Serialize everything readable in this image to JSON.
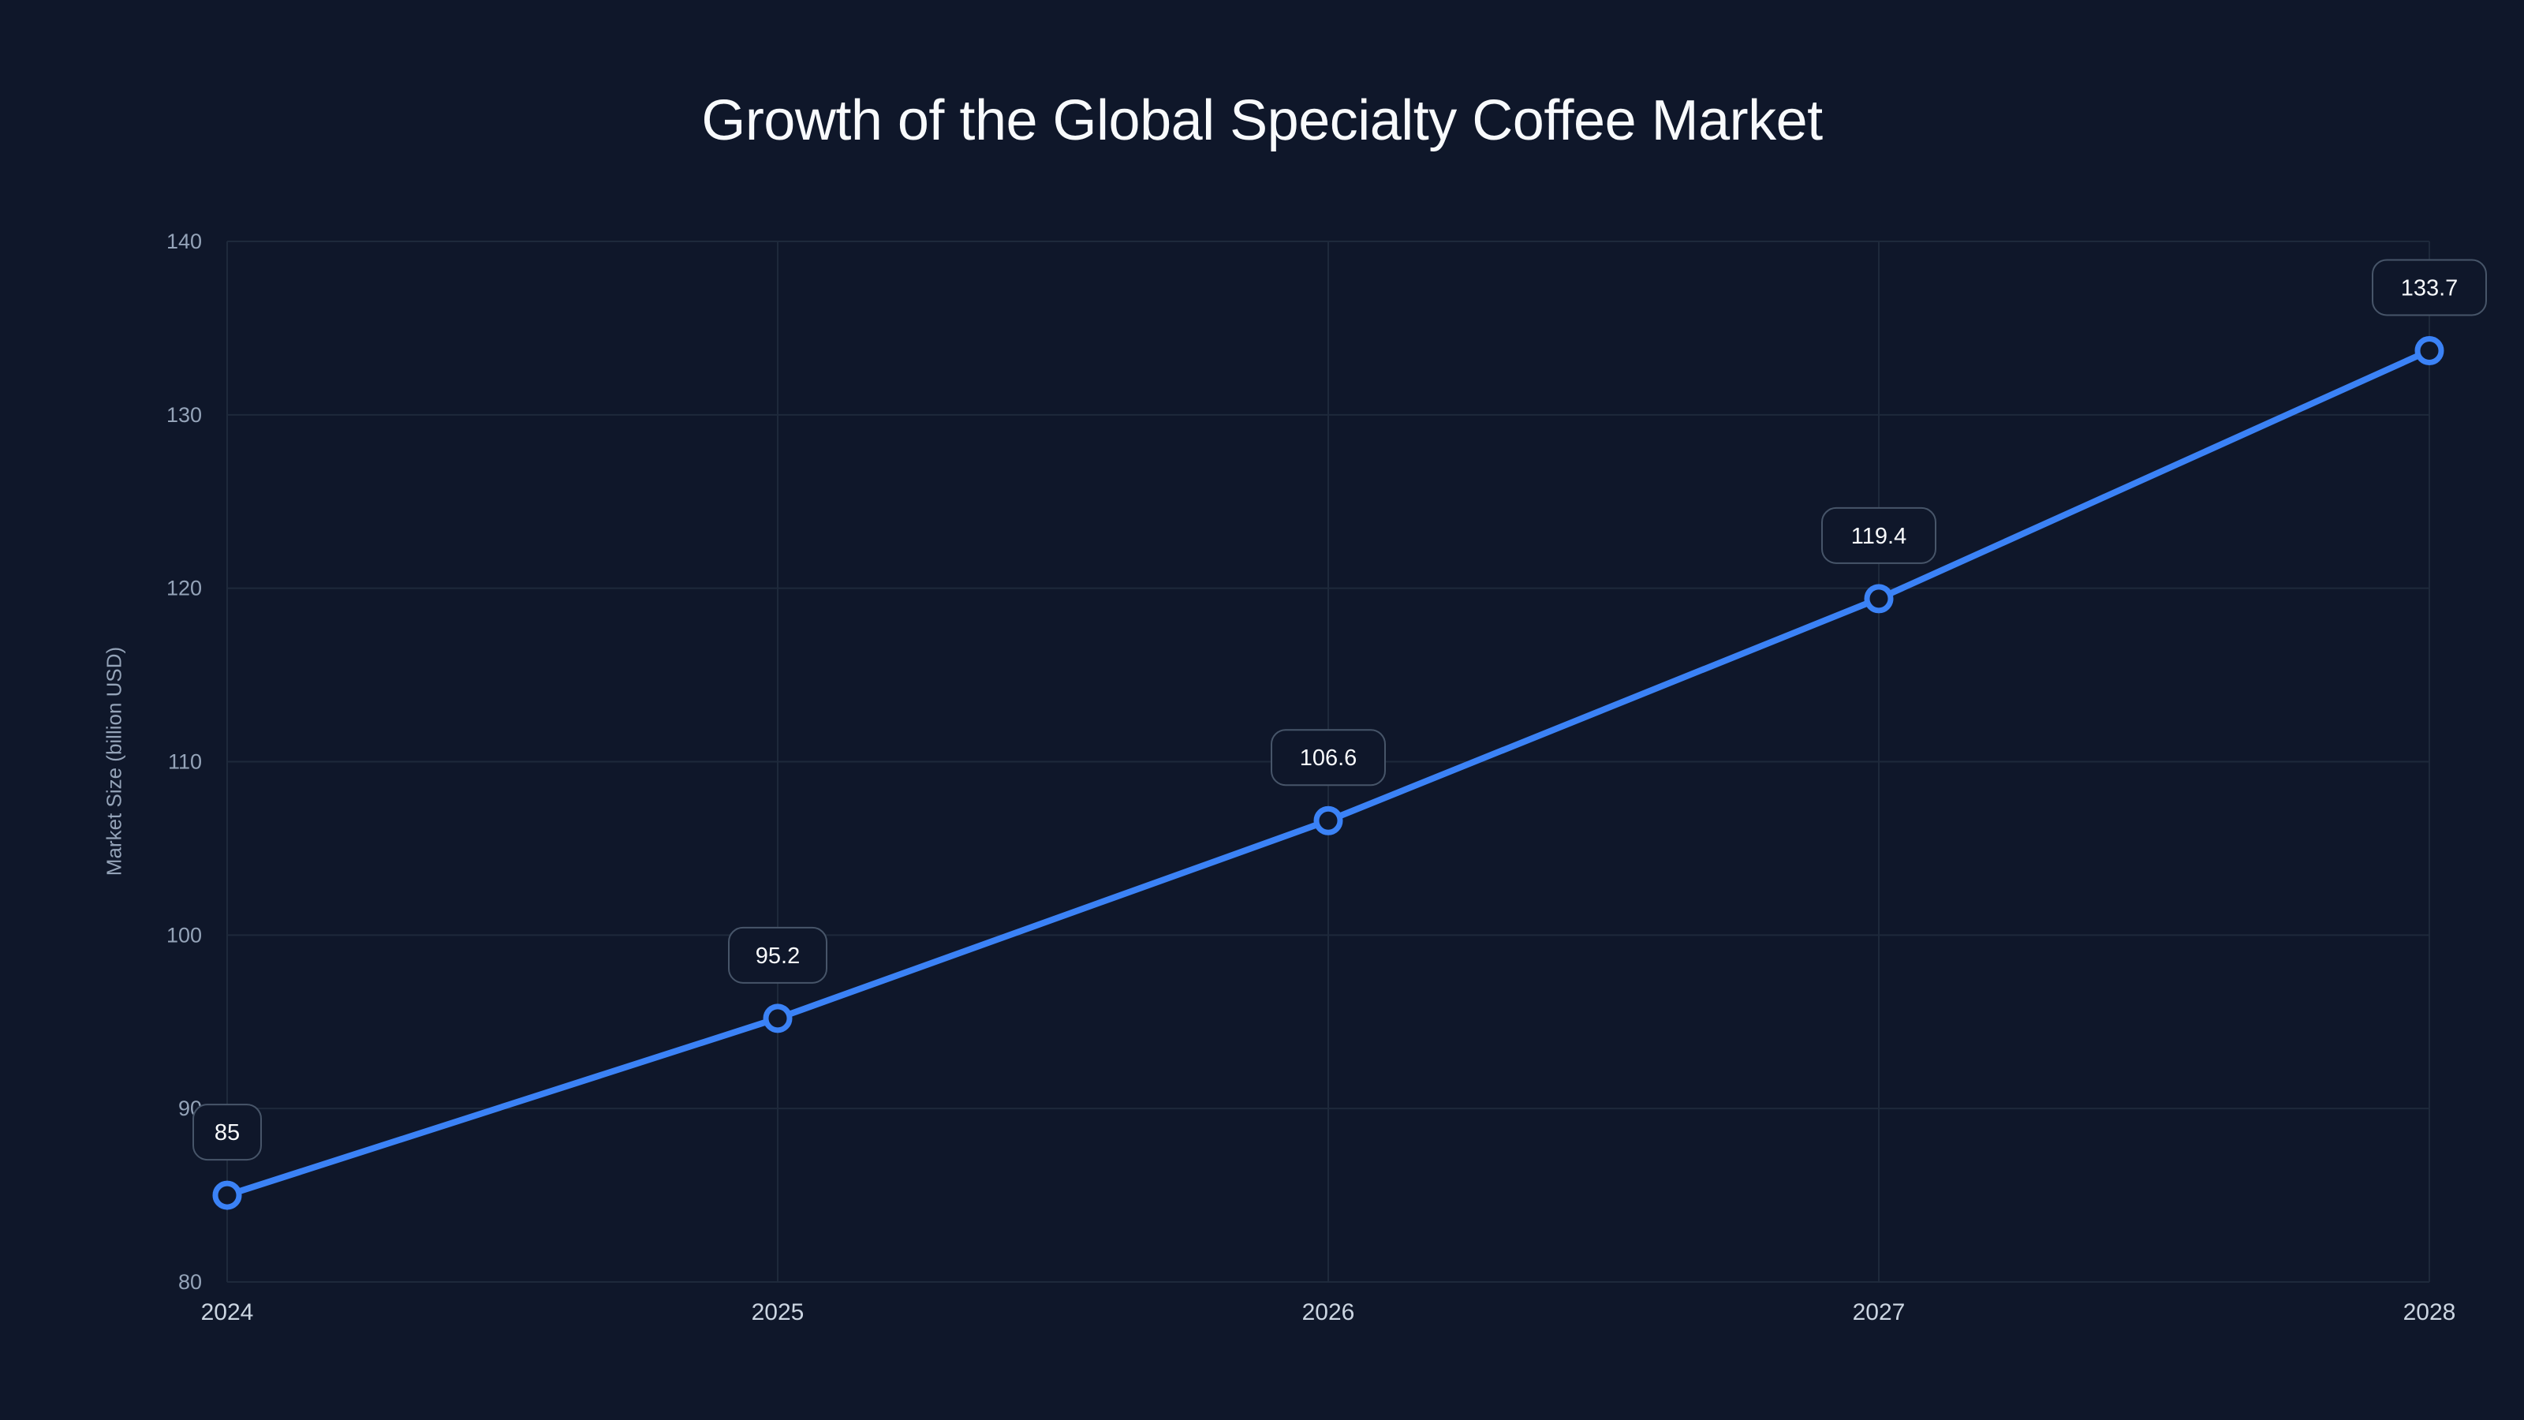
{
  "chart_data": {
    "type": "line",
    "title": "Growth of the Global Specialty Coffee Market",
    "xlabel": "",
    "ylabel": "Market Size (billion USD)",
    "categories": [
      "2024",
      "2025",
      "2026",
      "2027",
      "2028"
    ],
    "series": [
      {
        "name": "Market Size",
        "values": [
          85,
          95.2,
          106.6,
          119.4,
          133.7
        ],
        "color": "#3b82f6"
      }
    ],
    "data_labels": [
      "85",
      "95.2",
      "106.6",
      "119.4",
      "133.7"
    ],
    "ylim": [
      80,
      140
    ],
    "yticks": [
      80,
      90,
      100,
      110,
      120,
      130,
      140
    ],
    "grid": true,
    "legend": "none"
  },
  "colors": {
    "background": "#0f172a",
    "line": "#3b82f6",
    "grid": "#1e293b",
    "tick_text": "#94a3b8",
    "xtick_text": "#cbd5e1",
    "label_box_border": "#475569",
    "label_text": "#f8fafc"
  }
}
